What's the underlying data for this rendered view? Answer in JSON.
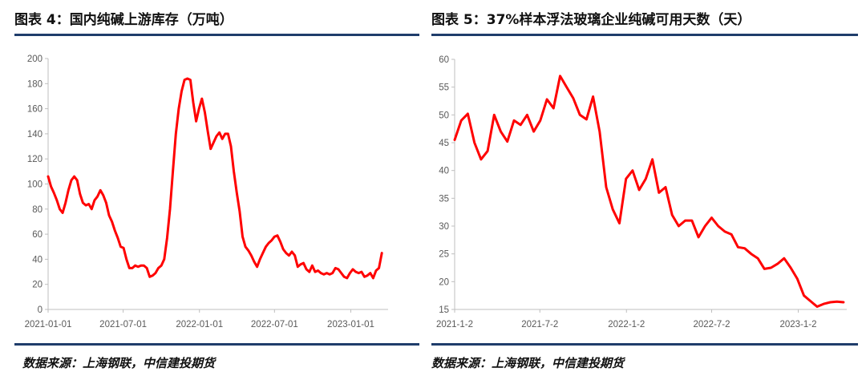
{
  "chart_data": [
    {
      "type": "line",
      "title": "图表 4：国内纯碱上游库存（万吨）",
      "source": "数据来源：上海钢联，中信建投期货",
      "y_ticks": [
        0,
        20,
        40,
        60,
        80,
        100,
        120,
        140,
        160,
        180,
        200
      ],
      "y_tick_labels": [
        "0",
        "20",
        "40",
        "60",
        "80",
        "100",
        "120",
        "140",
        "160",
        "180",
        "200"
      ],
      "ylim": [
        0,
        200
      ],
      "x_tick_labels": [
        "2021-01-01",
        "2021-07-01",
        "2022-01-01",
        "2022-07-01",
        "2023-01-01"
      ],
      "x_tick_dates": [
        "2021-01-01",
        "2021-07-01",
        "2022-01-01",
        "2022-07-01",
        "2023-01-01"
      ],
      "xlim": [
        "2021-01-01",
        "2023-04-01"
      ],
      "grid": false,
      "color": "#ff0000",
      "x": [
        "2021-01-01",
        "2021-01-08",
        "2021-01-15",
        "2021-01-22",
        "2021-01-29",
        "2021-02-05",
        "2021-02-12",
        "2021-02-19",
        "2021-02-26",
        "2021-03-05",
        "2021-03-12",
        "2021-03-19",
        "2021-03-26",
        "2021-04-02",
        "2021-04-09",
        "2021-04-16",
        "2021-04-23",
        "2021-04-30",
        "2021-05-07",
        "2021-05-14",
        "2021-05-21",
        "2021-05-28",
        "2021-06-04",
        "2021-06-11",
        "2021-06-18",
        "2021-06-25",
        "2021-07-02",
        "2021-07-09",
        "2021-07-16",
        "2021-07-23",
        "2021-07-30",
        "2021-08-06",
        "2021-08-13",
        "2021-08-20",
        "2021-08-27",
        "2021-09-03",
        "2021-09-10",
        "2021-09-17",
        "2021-09-24",
        "2021-10-01",
        "2021-10-08",
        "2021-10-15",
        "2021-10-22",
        "2021-10-29",
        "2021-11-05",
        "2021-11-12",
        "2021-11-19",
        "2021-11-26",
        "2021-12-03",
        "2021-12-10",
        "2021-12-17",
        "2021-12-24",
        "2021-12-31",
        "2022-01-07",
        "2022-01-14",
        "2022-01-21",
        "2022-01-28",
        "2022-02-04",
        "2022-02-11",
        "2022-02-18",
        "2022-02-25",
        "2022-03-04",
        "2022-03-11",
        "2022-03-18",
        "2022-03-25",
        "2022-04-01",
        "2022-04-08",
        "2022-04-15",
        "2022-04-22",
        "2022-04-29",
        "2022-05-06",
        "2022-05-13",
        "2022-05-20",
        "2022-05-27",
        "2022-06-03",
        "2022-06-10",
        "2022-06-17",
        "2022-06-24",
        "2022-07-01",
        "2022-07-08",
        "2022-07-15",
        "2022-07-22",
        "2022-07-29",
        "2022-08-05",
        "2022-08-12",
        "2022-08-19",
        "2022-08-26",
        "2022-09-02",
        "2022-09-09",
        "2022-09-16",
        "2022-09-23",
        "2022-09-30",
        "2022-10-07",
        "2022-10-14",
        "2022-10-21",
        "2022-10-28",
        "2022-11-04",
        "2022-11-11",
        "2022-11-18",
        "2022-11-25",
        "2022-12-02",
        "2022-12-09",
        "2022-12-16",
        "2022-12-23",
        "2022-12-30",
        "2023-01-06",
        "2023-01-13",
        "2023-01-20",
        "2023-01-27",
        "2023-02-03",
        "2023-02-10",
        "2023-02-17",
        "2023-02-24",
        "2023-03-03",
        "2023-03-10",
        "2023-03-17"
      ],
      "values": [
        106,
        98,
        93,
        87,
        80,
        77,
        85,
        95,
        103,
        106,
        103,
        92,
        85,
        83,
        84,
        80,
        87,
        90,
        95,
        91,
        85,
        75,
        70,
        63,
        57,
        50,
        49,
        40,
        33,
        33,
        35,
        34,
        35,
        35,
        33,
        26,
        27,
        29,
        33,
        35,
        40,
        57,
        80,
        110,
        140,
        160,
        174,
        183,
        184,
        183,
        165,
        150,
        160,
        168,
        157,
        142,
        128,
        133,
        138,
        141,
        136,
        140,
        140,
        130,
        110,
        93,
        78,
        58,
        50,
        47,
        43,
        38,
        34,
        40,
        45,
        50,
        53,
        55,
        58,
        59,
        54,
        48,
        45,
        43,
        46,
        43,
        34,
        36,
        37,
        32,
        30,
        35,
        30,
        31,
        29,
        28,
        29,
        28,
        29,
        33,
        32,
        29,
        26,
        25,
        29,
        32,
        30,
        29,
        30,
        26,
        27,
        29,
        25,
        31,
        33,
        45
      ]
    },
    {
      "type": "line",
      "title": "图表 5：37%样本浮法玻璃企业纯碱可用天数（天）",
      "source": "数据来源：上海钢联，中信建投期货",
      "y_ticks": [
        15,
        20,
        25,
        30,
        35,
        40,
        45,
        50,
        55,
        60
      ],
      "y_tick_labels": [
        "15",
        "20",
        "25",
        "30",
        "35",
        "40",
        "45",
        "50",
        "55",
        "60"
      ],
      "ylim": [
        15,
        60
      ],
      "x_tick_labels": [
        "2021-1-2",
        "2021-7-2",
        "2022-1-2",
        "2022-7-2",
        "2023-1-2"
      ],
      "x_tick_dates": [
        "2021-01-02",
        "2021-07-02",
        "2022-01-02",
        "2022-07-02",
        "2023-01-02"
      ],
      "xlim": [
        "2021-01-02",
        "2023-04-15"
      ],
      "grid": false,
      "color": "#ff0000",
      "x": [
        "2021-01-02",
        "2021-01-16",
        "2021-01-30",
        "2021-02-13",
        "2021-02-27",
        "2021-03-13",
        "2021-03-27",
        "2021-04-10",
        "2021-04-24",
        "2021-05-08",
        "2021-05-22",
        "2021-06-05",
        "2021-06-19",
        "2021-07-03",
        "2021-07-17",
        "2021-07-31",
        "2021-08-14",
        "2021-08-28",
        "2021-09-11",
        "2021-09-25",
        "2021-10-09",
        "2021-10-23",
        "2021-11-06",
        "2021-11-20",
        "2021-12-04",
        "2021-12-18",
        "2022-01-01",
        "2022-01-15",
        "2022-01-29",
        "2022-02-12",
        "2022-02-26",
        "2022-03-12",
        "2022-03-26",
        "2022-04-09",
        "2022-04-23",
        "2022-05-07",
        "2022-05-21",
        "2022-06-04",
        "2022-06-18",
        "2022-07-02",
        "2022-07-16",
        "2022-07-30",
        "2022-08-13",
        "2022-08-27",
        "2022-09-10",
        "2022-09-24",
        "2022-10-08",
        "2022-10-22",
        "2022-11-05",
        "2022-11-19",
        "2022-12-03",
        "2022-12-17",
        "2022-12-31",
        "2023-01-14",
        "2023-01-28",
        "2023-02-11",
        "2023-02-25",
        "2023-03-11",
        "2023-03-25",
        "2023-04-08"
      ],
      "values": [
        45.5,
        49,
        50.2,
        45,
        42,
        43.5,
        50,
        47,
        45.2,
        49,
        48.2,
        50,
        47,
        49,
        52.8,
        51.2,
        57,
        55,
        53,
        50,
        49.2,
        53.3,
        47,
        37,
        33,
        30.5,
        38.5,
        40,
        36.5,
        38.5,
        42,
        36,
        37,
        32,
        30,
        31,
        31,
        28,
        30,
        31.5,
        30,
        29,
        28.5,
        26.2,
        26,
        25,
        24.2,
        22.3,
        22.5,
        23.2,
        24.2,
        22.5,
        20.5,
        17.5,
        16.5,
        15.5,
        16,
        16.3,
        16.4,
        16.3
      ]
    }
  ]
}
